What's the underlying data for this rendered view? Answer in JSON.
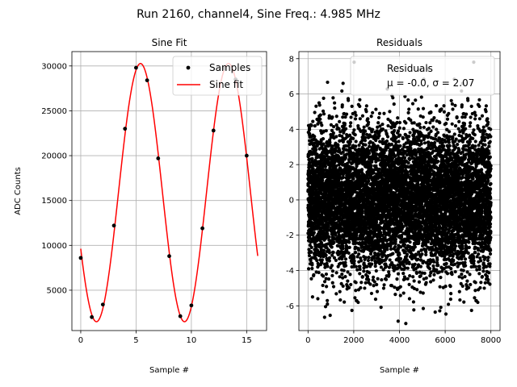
{
  "figure": {
    "suptitle": "Run 2160, channel4, Sine Freq.: 4.985 MHz"
  },
  "chart_data": [
    {
      "type": "line",
      "title": "Sine Fit",
      "xlabel": "Sample #",
      "ylabel": "ADC Counts",
      "xlim": [
        -0.8,
        16.8
      ],
      "ylim": [
        500,
        31600
      ],
      "xticks": [
        0,
        5,
        10,
        15
      ],
      "yticks": [
        5000,
        10000,
        15000,
        20000,
        25000,
        30000
      ],
      "grid": true,
      "legend_placement": "upper right",
      "fit": {
        "amplitude": 14390,
        "offset": 15880,
        "period": 7.96,
        "phase_sample": 5.4,
        "x_range": [
          0,
          16
        ]
      },
      "series": [
        {
          "name": "Samples",
          "kind": "scatter",
          "color": "#000000",
          "x": [
            0,
            1,
            2,
            3,
            4,
            5,
            6,
            7,
            8,
            9,
            10,
            11,
            12,
            13,
            14,
            15
          ],
          "y": [
            8600,
            2000,
            3400,
            12200,
            23000,
            29800,
            28400,
            19700,
            8800,
            2100,
            3300,
            11900,
            22800,
            29700,
            28500,
            20000
          ]
        },
        {
          "name": "Sine fit",
          "kind": "line",
          "color": "#ff0000"
        }
      ]
    },
    {
      "type": "scatter",
      "title": "Residuals",
      "xlabel": "Sample #",
      "ylabel": "",
      "xlim": [
        -400,
        8400
      ],
      "ylim": [
        -7.4,
        8.4
      ],
      "xticks": [
        0,
        2000,
        4000,
        6000,
        8000
      ],
      "yticks": [
        -6,
        -4,
        -2,
        0,
        2,
        4,
        6,
        8
      ],
      "grid": true,
      "legend_placement": "upper right",
      "legend_lines": [
        "Residuals",
        "μ = -0.0, σ = 2.07"
      ],
      "series": [
        {
          "name": "Residuals",
          "color": "#000000",
          "n_points": 8000,
          "mean": 0.0,
          "std": 2.07
        }
      ]
    }
  ]
}
